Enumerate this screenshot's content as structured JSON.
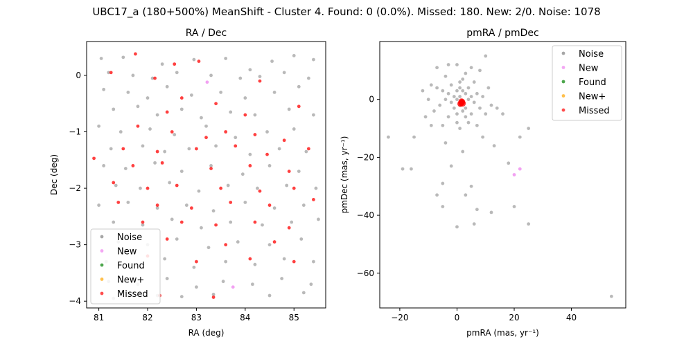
{
  "suptitle": "UBC17_a (180+500%) MeanShift - Cluster 4. Found: 0 (0.0%). Missed: 180. New: 2/0. Noise: 1078",
  "legend_entries": [
    {
      "label": "Noise",
      "color": "#808080"
    },
    {
      "label": "New",
      "color": "#ee82ee"
    },
    {
      "label": "Found",
      "color": "#008000"
    },
    {
      "label": "New+",
      "color": "#ffa500"
    },
    {
      "label": "Missed",
      "color": "#ff0000"
    }
  ],
  "chart_data": [
    {
      "type": "scatter",
      "title": "RA / Dec",
      "xlabel": "RA (deg)",
      "ylabel": "Dec (deg)",
      "xlim": [
        80.75,
        85.65
      ],
      "ylim": [
        -4.12,
        0.6
      ],
      "xticks": [
        81,
        82,
        83,
        84,
        85
      ],
      "yticks": [
        0,
        -1,
        -2,
        -3,
        -4
      ],
      "legend_position": "lower-left",
      "noise_count_note": "",
      "series": [
        {
          "name": "Noise",
          "color": "#808080",
          "points": [
            [
              81.05,
              0.3
            ],
            [
              81.5,
              0.32
            ],
            [
              82.3,
              0.2
            ],
            [
              82.95,
              0.28
            ],
            [
              83.6,
              0.3
            ],
            [
              84.1,
              0.1
            ],
            [
              84.55,
              0.25
            ],
            [
              85.0,
              0.35
            ],
            [
              85.4,
              0.28
            ],
            [
              81.2,
              0.05
            ],
            [
              81.7,
              0.0
            ],
            [
              82.1,
              -0.05
            ],
            [
              82.6,
              0.05
            ],
            [
              83.3,
              0.0
            ],
            [
              83.9,
              -0.05
            ],
            [
              84.3,
              -0.02
            ],
            [
              84.8,
              0.05
            ],
            [
              85.3,
              -0.05
            ],
            [
              81.1,
              -0.25
            ],
            [
              81.6,
              -0.3
            ],
            [
              82.0,
              -0.4
            ],
            [
              82.4,
              -0.2
            ],
            [
              82.9,
              -0.35
            ],
            [
              83.5,
              -0.3
            ],
            [
              84.0,
              -0.4
            ],
            [
              84.6,
              -0.3
            ],
            [
              85.1,
              -0.2
            ],
            [
              81.3,
              -0.6
            ],
            [
              81.8,
              -0.55
            ],
            [
              82.2,
              -0.7
            ],
            [
              82.7,
              -0.6
            ],
            [
              83.1,
              -0.75
            ],
            [
              83.7,
              -0.65
            ],
            [
              84.2,
              -0.7
            ],
            [
              84.9,
              -0.6
            ],
            [
              85.4,
              -0.7
            ],
            [
              81.0,
              -0.9
            ],
            [
              81.45,
              -1.0
            ],
            [
              82.05,
              -0.95
            ],
            [
              82.55,
              -1.05
            ],
            [
              83.2,
              -0.9
            ],
            [
              83.8,
              -1.1
            ],
            [
              84.45,
              -1.0
            ],
            [
              85.0,
              -0.95
            ],
            [
              81.25,
              -1.3
            ],
            [
              81.9,
              -1.25
            ],
            [
              82.35,
              -1.35
            ],
            [
              82.85,
              -1.3
            ],
            [
              83.4,
              -1.25
            ],
            [
              84.1,
              -1.4
            ],
            [
              84.7,
              -1.3
            ],
            [
              85.25,
              -1.35
            ],
            [
              81.1,
              -1.6
            ],
            [
              81.55,
              -1.65
            ],
            [
              82.15,
              -1.55
            ],
            [
              82.7,
              -1.7
            ],
            [
              83.3,
              -1.6
            ],
            [
              83.95,
              -1.75
            ],
            [
              84.5,
              -1.6
            ],
            [
              85.1,
              -1.7
            ],
            [
              81.35,
              -1.95
            ],
            [
              81.85,
              -2.0
            ],
            [
              82.45,
              -1.9
            ],
            [
              83.05,
              -2.05
            ],
            [
              83.65,
              -1.95
            ],
            [
              84.25,
              -2.0
            ],
            [
              84.85,
              -1.95
            ],
            [
              85.45,
              -2.0
            ],
            [
              81.0,
              -2.3
            ],
            [
              81.6,
              -2.25
            ],
            [
              82.2,
              -2.35
            ],
            [
              82.8,
              -2.3
            ],
            [
              83.35,
              -2.4
            ],
            [
              84.0,
              -2.25
            ],
            [
              84.6,
              -2.35
            ],
            [
              85.2,
              -2.3
            ],
            [
              81.3,
              -2.6
            ],
            [
              81.9,
              -2.65
            ],
            [
              82.5,
              -2.55
            ],
            [
              83.1,
              -2.7
            ],
            [
              83.7,
              -2.6
            ],
            [
              84.35,
              -2.65
            ],
            [
              84.95,
              -2.6
            ],
            [
              85.5,
              -2.55
            ],
            [
              81.4,
              -2.95
            ],
            [
              82.0,
              -3.0
            ],
            [
              82.6,
              -2.9
            ],
            [
              83.25,
              -3.05
            ],
            [
              83.85,
              -2.95
            ],
            [
              84.5,
              -3.0
            ],
            [
              85.15,
              -2.9
            ],
            [
              81.15,
              -3.3
            ],
            [
              81.75,
              -3.35
            ],
            [
              82.35,
              -3.25
            ],
            [
              82.95,
              -3.4
            ],
            [
              83.6,
              -3.3
            ],
            [
              84.2,
              -3.35
            ],
            [
              84.8,
              -3.25
            ],
            [
              85.4,
              -3.3
            ],
            [
              81.2,
              -3.65
            ],
            [
              81.8,
              -3.7
            ],
            [
              82.4,
              -3.6
            ],
            [
              83.0,
              -3.75
            ],
            [
              83.55,
              -3.65
            ],
            [
              84.15,
              -3.7
            ],
            [
              84.75,
              -3.6
            ],
            [
              85.35,
              -3.7
            ],
            [
              81.3,
              -3.95
            ],
            [
              82.2,
              -3.9
            ],
            [
              82.7,
              -3.92
            ],
            [
              83.35,
              -3.88
            ],
            [
              84.5,
              -3.9
            ],
            [
              85.2,
              -3.85
            ]
          ]
        },
        {
          "name": "New",
          "color": "#ee82ee",
          "points": [
            [
              83.22,
              -0.12
            ],
            [
              83.75,
              -3.75
            ]
          ]
        },
        {
          "name": "Found",
          "color": "#008000",
          "points": []
        },
        {
          "name": "New+",
          "color": "#ffa500",
          "points": []
        },
        {
          "name": "Missed",
          "color": "#ff0000",
          "points": [
            [
              81.75,
              0.38
            ],
            [
              82.55,
              0.2
            ],
            [
              83.05,
              0.25
            ],
            [
              81.25,
              0.05
            ],
            [
              82.15,
              -0.05
            ],
            [
              84.3,
              -0.1
            ],
            [
              82.7,
              -0.4
            ],
            [
              83.4,
              -0.5
            ],
            [
              82.4,
              -0.65
            ],
            [
              84.0,
              -0.7
            ],
            [
              85.1,
              -0.55
            ],
            [
              81.8,
              -0.9
            ],
            [
              82.5,
              -1.0
            ],
            [
              83.2,
              -1.1
            ],
            [
              83.6,
              -1.0
            ],
            [
              84.2,
              -1.05
            ],
            [
              84.8,
              -1.15
            ],
            [
              81.5,
              -1.3
            ],
            [
              82.2,
              -1.35
            ],
            [
              83.0,
              -1.3
            ],
            [
              83.8,
              -1.25
            ],
            [
              84.45,
              -1.4
            ],
            [
              85.3,
              -1.3
            ],
            [
              80.9,
              -1.47
            ],
            [
              81.7,
              -1.6
            ],
            [
              82.3,
              -1.55
            ],
            [
              83.3,
              -1.65
            ],
            [
              84.1,
              -1.6
            ],
            [
              84.9,
              -1.7
            ],
            [
              81.3,
              -1.9
            ],
            [
              82.0,
              -2.0
            ],
            [
              82.6,
              -1.95
            ],
            [
              83.5,
              -2.0
            ],
            [
              84.3,
              -2.05
            ],
            [
              85.0,
              -2.0
            ],
            [
              81.4,
              -2.25
            ],
            [
              82.2,
              -2.3
            ],
            [
              82.9,
              -2.35
            ],
            [
              83.7,
              -2.25
            ],
            [
              84.5,
              -2.3
            ],
            [
              85.4,
              -2.2
            ],
            [
              81.9,
              -2.6
            ],
            [
              82.7,
              -2.6
            ],
            [
              83.4,
              -2.65
            ],
            [
              84.2,
              -2.6
            ],
            [
              84.9,
              -2.7
            ],
            [
              82.4,
              -2.9
            ],
            [
              83.6,
              -3.0
            ],
            [
              84.6,
              -2.95
            ],
            [
              82.0,
              -3.2
            ],
            [
              83.0,
              -3.3
            ],
            [
              84.1,
              -3.25
            ],
            [
              85.0,
              -3.3
            ],
            [
              82.25,
              -3.9
            ],
            [
              83.35,
              -3.93
            ]
          ]
        }
      ]
    },
    {
      "type": "scatter",
      "title": "pmRA / pmDec",
      "xlabel": "pmRA (mas, yr⁻¹)",
      "ylabel": "pmDec (mas, yr⁻¹)",
      "xlim": [
        -27,
        59
      ],
      "ylim": [
        -72,
        20
      ],
      "xticks": [
        -20,
        0,
        20,
        40
      ],
      "yticks": [
        0,
        -20,
        -40,
        -60
      ],
      "legend_position": "top-right",
      "series": [
        {
          "name": "Noise",
          "color": "#808080",
          "points": [
            [
              0,
              0
            ],
            [
              1,
              1
            ],
            [
              2,
              -1
            ],
            [
              3,
              2
            ],
            [
              -1,
              1
            ],
            [
              1,
              -2
            ],
            [
              2,
              3
            ],
            [
              4,
              0
            ],
            [
              -2,
              -1
            ],
            [
              0,
              3
            ],
            [
              3,
              -3
            ],
            [
              5,
              1
            ],
            [
              -3,
              2
            ],
            [
              1,
              4
            ],
            [
              2,
              -4
            ],
            [
              -1,
              -3
            ],
            [
              6,
              -1
            ],
            [
              -4,
              0
            ],
            [
              0,
              -5
            ],
            [
              4,
              4
            ],
            [
              -5,
              3
            ],
            [
              7,
              2
            ],
            [
              3,
              -6
            ],
            [
              -2,
              5
            ],
            [
              1,
              6
            ],
            [
              -6,
              -2
            ],
            [
              8,
              -3
            ],
            [
              5,
              -5
            ],
            [
              -3,
              -6
            ],
            [
              2,
              7
            ],
            [
              -7,
              4
            ],
            [
              9,
              1
            ],
            [
              0,
              -8
            ],
            [
              6,
              6
            ],
            [
              -8,
              -4
            ],
            [
              4,
              -8
            ],
            [
              10,
              -5
            ],
            [
              -4,
              8
            ],
            [
              3,
              9
            ],
            [
              -10,
              0
            ],
            [
              12,
              -2
            ],
            [
              -9,
              5
            ],
            [
              7,
              -9
            ],
            [
              1,
              -10
            ],
            [
              11,
              4
            ],
            [
              -5,
              -9
            ],
            [
              14,
              -3
            ],
            [
              -12,
              3
            ],
            [
              5,
              11
            ],
            [
              -11,
              -6
            ],
            [
              16,
              -5
            ],
            [
              0,
              12
            ],
            [
              8,
              10
            ],
            [
              -15,
              -13
            ],
            [
              -24,
              -13
            ],
            [
              -19,
              -24
            ],
            [
              -16,
              -24
            ],
            [
              -2,
              -23
            ],
            [
              -5,
              -29
            ],
            [
              -7,
              -33
            ],
            [
              5,
              -30
            ],
            [
              3,
              -33
            ],
            [
              -5,
              -37
            ],
            [
              12,
              -39
            ],
            [
              7,
              -38
            ],
            [
              0,
              -44
            ],
            [
              6,
              -43
            ],
            [
              20,
              -37
            ],
            [
              25,
              -43
            ],
            [
              18,
              -22
            ],
            [
              22,
              -13
            ],
            [
              25,
              -10
            ],
            [
              10,
              15
            ],
            [
              -7,
              11
            ],
            [
              -3,
              12
            ],
            [
              54,
              -68
            ],
            [
              13,
              -16
            ],
            [
              -9,
              -9
            ],
            [
              9,
              -13
            ],
            [
              2,
              -18
            ],
            [
              -4,
              -15
            ]
          ]
        },
        {
          "name": "New",
          "color": "#ee82ee",
          "points": [
            [
              22,
              -24
            ],
            [
              20,
              -26
            ]
          ]
        },
        {
          "name": "Found",
          "color": "#008000",
          "points": []
        },
        {
          "name": "New+",
          "color": "#ffa500",
          "points": []
        },
        {
          "name": "Missed",
          "color": "#ff0000",
          "points": [
            [
              1.5,
              -1.2
            ],
            [
              1.8,
              -0.9
            ],
            [
              1.2,
              -1.5
            ],
            [
              2.0,
              -1.4
            ],
            [
              1.6,
              -0.7
            ]
          ]
        }
      ]
    }
  ]
}
